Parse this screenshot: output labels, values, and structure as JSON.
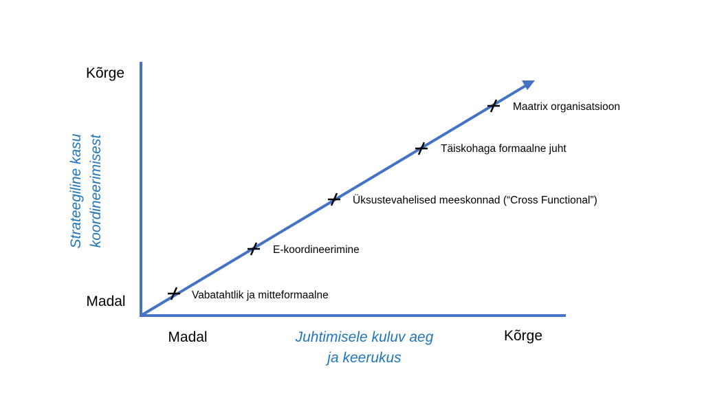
{
  "colors": {
    "axis": "#4472C4",
    "axis_title": "#1F75BC",
    "text": "#000000",
    "marker": "#000000"
  },
  "y_axis": {
    "title_line1": "Strateegiline kasu",
    "title_line2": "koordineerimisest",
    "high_label": "Kõrge",
    "low_label": "Madal"
  },
  "x_axis": {
    "title_line1": "Juhtimisele kuluv aeg",
    "title_line2": "ja keerukus",
    "low_label": "Madal",
    "high_label": "Kõrge"
  },
  "points": [
    {
      "label": "Vabatahtlik ja mitteformaalne"
    },
    {
      "label": "E-koordineerimine"
    },
    {
      "label": "Üksustevahelised meeskonnad (“Cross Functional”)"
    },
    {
      "label": "Täiskohaga formaalne juht"
    },
    {
      "label": "Maatrix organisatsioon"
    }
  ]
}
